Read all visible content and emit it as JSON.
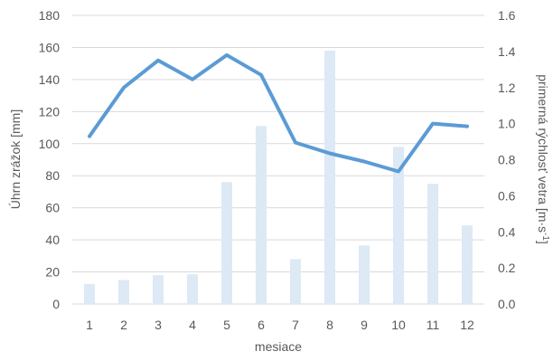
{
  "chart_data": {
    "type": "bar+line",
    "title": "",
    "xlabel": "mesiace",
    "ylabel_left": "Úhrn zrážok [mm]",
    "ylabel_right": "primerná rýchlosť vetra [m·s",
    "ylabel_right_superscript": "-1",
    "ylabel_right_close": "]",
    "categories": [
      "1",
      "2",
      "3",
      "4",
      "5",
      "6",
      "7",
      "8",
      "9",
      "10",
      "11",
      "12"
    ],
    "y_left_ticks": [
      "0",
      "20",
      "40",
      "60",
      "80",
      "100",
      "120",
      "140",
      "160",
      "180"
    ],
    "y_right_ticks": [
      "0.0",
      "0.2",
      "0.4",
      "0.6",
      "0.8",
      "1.0",
      "1.2",
      "1.4",
      "1.6"
    ],
    "ylim_left": [
      0,
      180
    ],
    "ylim_right": [
      0,
      1.6
    ],
    "grid": true,
    "series": [
      {
        "type": "bar",
        "axis": "left",
        "color": "#dde9f5",
        "values": [
          12.5,
          15,
          18,
          18.5,
          76,
          111,
          28,
          158,
          36.5,
          98,
          75,
          49
        ]
      },
      {
        "type": "line",
        "axis": "right",
        "color": "#5b9bd5",
        "values": [
          0.93,
          1.2,
          1.35,
          1.245,
          1.38,
          1.27,
          0.895,
          0.835,
          0.79,
          0.735,
          1.0,
          0.985
        ]
      }
    ]
  }
}
